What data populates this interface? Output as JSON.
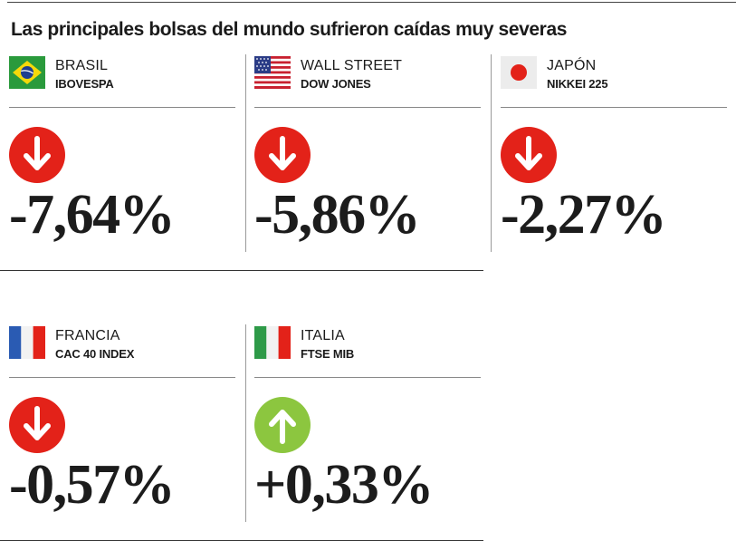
{
  "title": "Las principales bolsas del mundo sufrieron caídas muy severas",
  "colors": {
    "down": "#e32219",
    "up": "#8cc63f"
  },
  "markets": [
    {
      "country": "BRASIL",
      "index": "IBOVESPA",
      "change": "-7,64%",
      "direction": "down",
      "flag_icon": "brazil-flag-icon"
    },
    {
      "country": "WALL STREET",
      "index": "DOW JONES",
      "change": "-5,86%",
      "direction": "down",
      "flag_icon": "usa-flag-icon"
    },
    {
      "country": "JAPÓN",
      "index": "NIKKEI 225",
      "change": "-2,27%",
      "direction": "down",
      "flag_icon": "japan-flag-icon"
    },
    {
      "country": "FRANCIA",
      "index": "CAC 40 INDEX",
      "change": "-0,57%",
      "direction": "down",
      "flag_icon": "france-flag-icon"
    },
    {
      "country": "ITALIA",
      "index": "FTSE MIB",
      "change": "+0,33%",
      "direction": "up",
      "flag_icon": "italy-flag-icon"
    }
  ]
}
